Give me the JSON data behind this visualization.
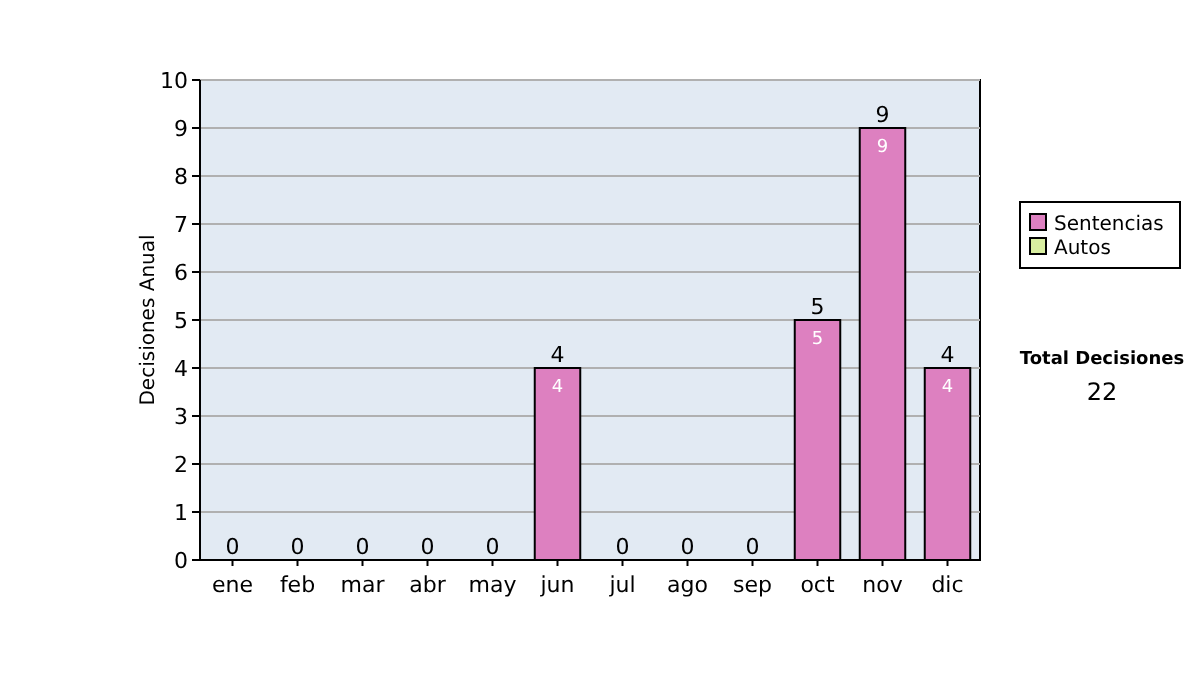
{
  "chart_data": {
    "type": "bar",
    "stacked": true,
    "ylabel": "Decisiones Anual",
    "categories": [
      "ene",
      "feb",
      "mar",
      "abr",
      "may",
      "jun",
      "jul",
      "ago",
      "sep",
      "oct",
      "nov",
      "dic"
    ],
    "series": [
      {
        "name": "Sentencias",
        "color": "#dd80c0",
        "values": [
          0,
          0,
          0,
          0,
          0,
          4,
          0,
          0,
          0,
          5,
          9,
          4
        ],
        "value_labels": [
          null,
          null,
          null,
          null,
          null,
          "4",
          null,
          null,
          null,
          "5",
          "9",
          "4"
        ]
      },
      {
        "name": "Autos",
        "color": "#d8eea0",
        "values": [
          0,
          0,
          0,
          0,
          0,
          0,
          0,
          0,
          0,
          0,
          0,
          0
        ]
      }
    ],
    "totals": [
      "0",
      "0",
      "0",
      "0",
      "0",
      "4",
      "0",
      "0",
      "0",
      "5",
      "9",
      "4"
    ],
    "ylim": [
      0,
      10
    ],
    "yticks": [
      0,
      1,
      2,
      3,
      4,
      5,
      6,
      7,
      8,
      9,
      10
    ],
    "grid": "y",
    "legend": "right",
    "annotations": [
      "Total Decisiones",
      "22"
    ]
  }
}
